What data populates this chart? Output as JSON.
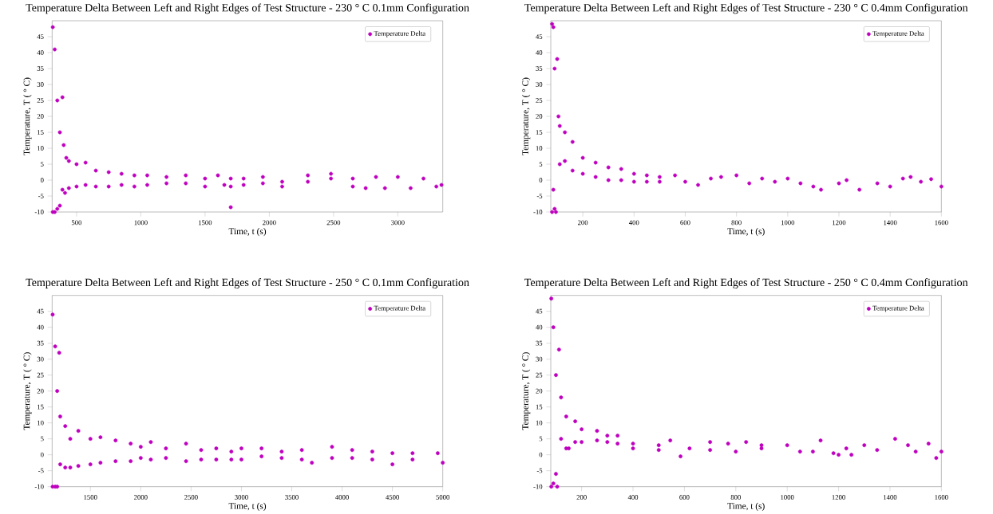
{
  "chart_data": [
    {
      "type": "scatter",
      "title": "Temperature Delta Between Left and Right Edges of Test Structure - 230 ° C 0.1mm Configuration",
      "xlabel": "Time, t (s)",
      "ylabel": "Temperature, T ( ° C)",
      "xlim": [
        310,
        3350
      ],
      "ylim": [
        -10,
        50
      ],
      "xticks": [
        500,
        1000,
        1500,
        2000,
        2500,
        3000
      ],
      "yticks": [
        -10,
        -5,
        0,
        5,
        10,
        15,
        20,
        25,
        30,
        35,
        40,
        45
      ],
      "legend": "top right",
      "marker": "circle",
      "series": [
        {
          "name": "Temperature Delta",
          "color": "#bf00bf",
          "x": [
            315,
            315,
            330,
            330,
            350,
            350,
            370,
            370,
            390,
            390,
            400,
            410,
            420,
            440,
            440,
            500,
            500,
            570,
            570,
            650,
            650,
            750,
            750,
            850,
            850,
            950,
            950,
            1050,
            1050,
            1200,
            1200,
            1350,
            1350,
            1500,
            1500,
            1600,
            1650,
            1700,
            1700,
            1700,
            1800,
            1800,
            1950,
            1950,
            2100,
            2100,
            2300,
            2300,
            2480,
            2480,
            2650,
            2650,
            2750,
            2830,
            2900,
            3000,
            3100,
            3200,
            3300,
            3340
          ],
          "values": [
            48,
            -10,
            41,
            -10,
            25,
            -9,
            15,
            -8,
            26,
            -3,
            11,
            -4,
            7,
            6,
            -2.5,
            5,
            -2,
            5.5,
            -1.5,
            3,
            -2,
            2.5,
            -2,
            2,
            -1.5,
            1.5,
            -2,
            1.5,
            -1.5,
            1,
            -1,
            1.5,
            -1,
            0.5,
            -2,
            1.5,
            -1.5,
            -8.5,
            0.5,
            -2,
            0.5,
            -1.5,
            1,
            -1,
            -0.5,
            -2,
            1.5,
            -0.5,
            2,
            0.5,
            0.5,
            -2,
            -2.5,
            1,
            -2.5,
            1,
            -2.5,
            0.5,
            -2,
            -1.5
          ]
        }
      ]
    },
    {
      "type": "scatter",
      "title": "Temperature Delta Between Left and Right Edges of Test Structure - 230 ° C 0.4mm Configuration",
      "xlabel": "Time, t (s)",
      "ylabel": "Temperature, T ( ° C)",
      "xlim": [
        75,
        1600
      ],
      "ylim": [
        -10,
        50
      ],
      "xticks": [
        200,
        400,
        600,
        800,
        1000,
        1200,
        1400,
        1600
      ],
      "yticks": [
        -10,
        -5,
        0,
        5,
        10,
        15,
        20,
        25,
        30,
        35,
        40,
        45
      ],
      "legend": "top right",
      "marker": "circle",
      "series": [
        {
          "name": "Temperature Delta",
          "color": "#bf00bf",
          "x": [
            80,
            80,
            85,
            85,
            90,
            90,
            95,
            100,
            105,
            110,
            110,
            130,
            130,
            160,
            160,
            200,
            200,
            250,
            250,
            300,
            300,
            350,
            350,
            400,
            400,
            450,
            450,
            500,
            500,
            560,
            600,
            650,
            700,
            740,
            800,
            850,
            900,
            950,
            1000,
            1050,
            1100,
            1130,
            1200,
            1230,
            1280,
            1350,
            1400,
            1450,
            1480,
            1520,
            1560,
            1600
          ],
          "values": [
            49,
            -10,
            48,
            -3,
            35,
            -9,
            -10,
            38,
            20,
            17,
            5,
            15,
            6,
            12,
            3,
            7,
            2,
            5.5,
            1,
            4,
            0,
            3.5,
            0,
            2,
            -0.5,
            1.5,
            -0.5,
            1,
            -0.5,
            1.5,
            -0.5,
            -1.5,
            0.5,
            1,
            1.5,
            -1,
            0.5,
            -0.5,
            0.5,
            -1,
            -2,
            -3,
            -1,
            0,
            -3,
            -1,
            -2,
            0.5,
            1,
            -0.5,
            0.3,
            -2
          ]
        }
      ]
    },
    {
      "type": "scatter",
      "title": "Temperature Delta Between Left and Right Edges of Test Structure - 250 ° C 0.1mm Configuration",
      "xlabel": "Time, t (s)",
      "ylabel": "Temperature, T ( ° C)",
      "xlim": [
        1120,
        5000
      ],
      "ylim": [
        -10,
        50
      ],
      "xticks": [
        1500,
        2000,
        2500,
        3000,
        3500,
        4000,
        4500,
        5000
      ],
      "yticks": [
        -10,
        -5,
        0,
        5,
        10,
        15,
        20,
        25,
        30,
        35,
        40,
        45
      ],
      "legend": "top right",
      "marker": "circle",
      "series": [
        {
          "name": "Temperature Delta",
          "color": "#bf00bf",
          "x": [
            1125,
            1125,
            1150,
            1150,
            1170,
            1170,
            1190,
            1200,
            1200,
            1250,
            1250,
            1300,
            1300,
            1380,
            1380,
            1500,
            1500,
            1600,
            1600,
            1750,
            1750,
            1900,
            1900,
            2000,
            2000,
            2100,
            2100,
            2250,
            2250,
            2450,
            2450,
            2600,
            2600,
            2750,
            2750,
            2900,
            2900,
            3000,
            3000,
            3200,
            3200,
            3400,
            3400,
            3600,
            3600,
            3700,
            3900,
            3900,
            4100,
            4100,
            4300,
            4300,
            4500,
            4500,
            4700,
            4700,
            4950,
            5000
          ],
          "values": [
            44,
            -10,
            34,
            -10,
            20,
            -10,
            32,
            12,
            -3,
            9,
            -4,
            5,
            -4,
            7.5,
            -3.5,
            5,
            -3,
            5.5,
            -2.5,
            4.5,
            -2,
            3.5,
            -2,
            2.5,
            -1,
            4,
            -1.5,
            2,
            -1,
            3.5,
            -2,
            1.5,
            -1.5,
            2,
            -1.5,
            1,
            -1.5,
            2,
            -1.5,
            2,
            -0.5,
            1,
            -1,
            1.5,
            -1.5,
            -2.5,
            2.5,
            -1,
            1.5,
            -1,
            1,
            -1.5,
            0.5,
            -3,
            0.5,
            -1.5,
            0.5,
            -2.5
          ]
        }
      ]
    },
    {
      "type": "scatter",
      "title": "Temperature Delta Between Left and Right Edges of Test Structure - 250 ° C 0.4mm Configuration",
      "xlabel": "Time, t (s)",
      "ylabel": "Temperature, T ( ° C)",
      "xlim": [
        80,
        1600
      ],
      "ylim": [
        -10,
        50
      ],
      "xticks": [
        200,
        400,
        600,
        800,
        1000,
        1200,
        1400,
        1600
      ],
      "yticks": [
        -10,
        -5,
        0,
        5,
        10,
        15,
        20,
        25,
        30,
        35,
        40,
        45
      ],
      "legend": "top right",
      "marker": "circle",
      "series": [
        {
          "name": "Temperature Delta",
          "color": "#bf00bf",
          "x": [
            82,
            82,
            90,
            90,
            100,
            100,
            105,
            112,
            120,
            120,
            140,
            140,
            150,
            175,
            175,
            200,
            200,
            260,
            260,
            300,
            300,
            340,
            340,
            400,
            400,
            500,
            500,
            545,
            585,
            620,
            700,
            700,
            770,
            800,
            840,
            900,
            900,
            1000,
            1050,
            1100,
            1130,
            1180,
            1200,
            1230,
            1250,
            1300,
            1350,
            1420,
            1470,
            1500,
            1550,
            1580,
            1600
          ],
          "values": [
            49,
            -10,
            40,
            -9,
            25,
            -6,
            -10,
            33,
            18,
            5,
            12,
            2,
            2,
            10.5,
            4,
            8,
            4,
            7.5,
            4.5,
            6,
            4,
            6,
            3.5,
            3.5,
            2,
            3,
            1.5,
            4.5,
            -0.5,
            2,
            4,
            1.5,
            3.5,
            1,
            4,
            2,
            3,
            3,
            1,
            1,
            4.5,
            0.5,
            0,
            2,
            0,
            3,
            1.5,
            5,
            3,
            1,
            3.5,
            -1,
            1
          ]
        }
      ]
    }
  ]
}
